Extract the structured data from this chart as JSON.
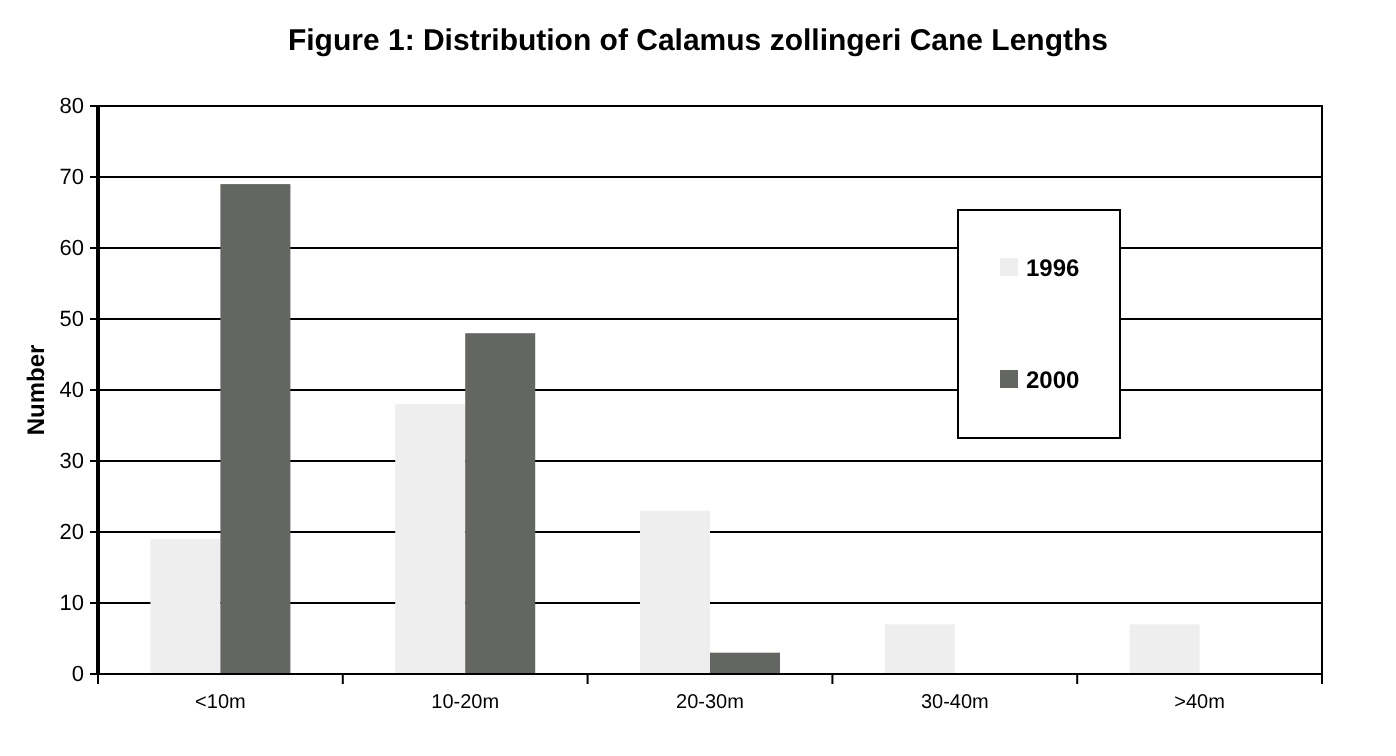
{
  "chart_data": {
    "type": "bar",
    "title": "Figure 1: Distribution of Calamus zollingeri Cane Lengths",
    "ylabel": "Number",
    "categories": [
      "<10m",
      "10-20m",
      "20-30m",
      "30-40m",
      ">40m"
    ],
    "series": [
      {
        "name": "1996",
        "color": "#eeeeee",
        "values": [
          19,
          38,
          23,
          7,
          7
        ]
      },
      {
        "name": "2000",
        "color": "#646662",
        "values": [
          69,
          48,
          3,
          0,
          0
        ]
      }
    ],
    "ylim": [
      0,
      80
    ],
    "yticks": [
      0,
      10,
      20,
      30,
      40,
      50,
      60,
      70,
      80
    ],
    "grid": "y",
    "legend": "right"
  }
}
